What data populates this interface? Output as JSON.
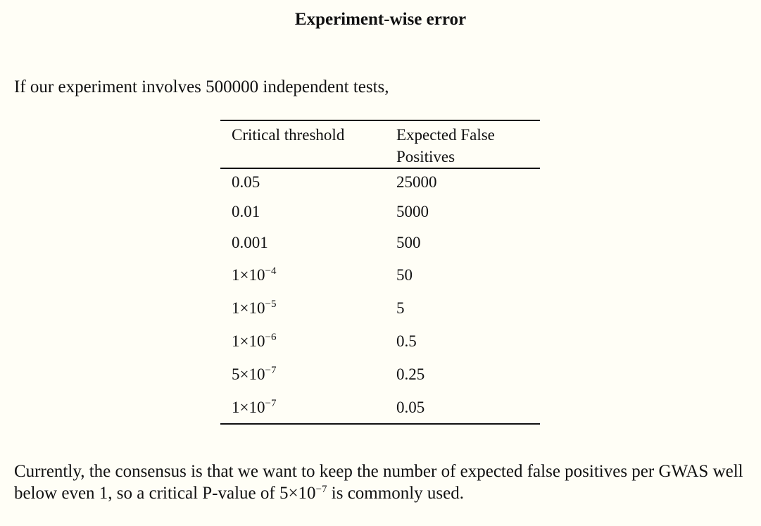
{
  "title": "Experiment-wise error",
  "intro": "If our experiment involves 500000 independent tests,",
  "table": {
    "headers": [
      "Critical threshold",
      "Expected False Positives"
    ],
    "rows": [
      {
        "threshold": "0.05",
        "expected": "25000"
      },
      {
        "threshold": "0.01",
        "expected": "5000"
      },
      {
        "threshold": "0.001",
        "expected": "500"
      },
      {
        "threshold_base": "1×10",
        "threshold_exp": "−4",
        "expected": "50"
      },
      {
        "threshold_base": "1×10",
        "threshold_exp": "−5",
        "expected": "5"
      },
      {
        "threshold_base": "1×10",
        "threshold_exp": "−6",
        "expected": "0.5"
      },
      {
        "threshold_base": "5×10",
        "threshold_exp": "−7",
        "expected": "0.25"
      },
      {
        "threshold_base": "1×10",
        "threshold_exp": "−7",
        "expected": "0.05"
      }
    ]
  },
  "conclusion": {
    "before": "Currently, the consensus is that we want to keep the number of expected false positives per GWAS well below even 1, so a critical P-value of ",
    "value_base": "5×10",
    "value_exp": "−7",
    "after": " is commonly used."
  }
}
